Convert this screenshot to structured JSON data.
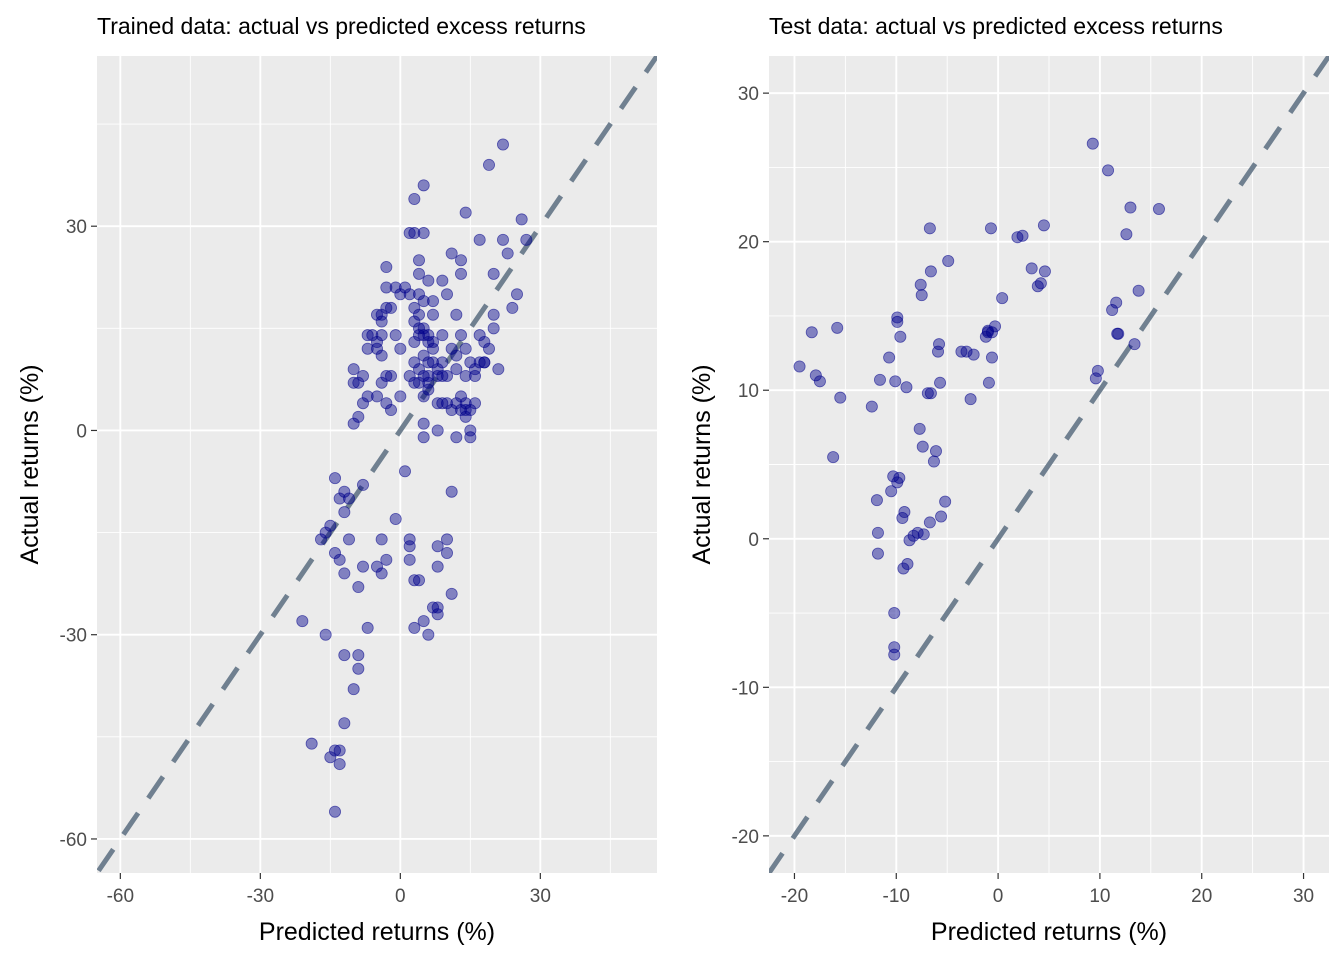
{
  "chart_data": [
    {
      "type": "scatter",
      "title": "Trained data: actual vs predicted excess returns",
      "xlabel": "Predicted returns (%)",
      "ylabel": "Actual returns (%)",
      "xlim": [
        -65,
        55
      ],
      "ylim": [
        -65,
        55
      ],
      "xticks": [
        -60,
        -30,
        0,
        30
      ],
      "yticks": [
        -60,
        -30,
        0,
        30
      ],
      "grid": true,
      "reference_line": "y = x (dashed, slate grey)",
      "point_color": "#00008B",
      "line_color": "#708090",
      "panel_color": "#EBEBEB",
      "points": [
        [
          -21,
          -28
        ],
        [
          -19,
          -46
        ],
        [
          -17,
          -16
        ],
        [
          -16,
          -15
        ],
        [
          -16,
          -30
        ],
        [
          -15,
          -14
        ],
        [
          -15,
          -48
        ],
        [
          -14,
          -47
        ],
        [
          -14,
          -7
        ],
        [
          -14,
          -18
        ],
        [
          -14,
          -56
        ],
        [
          -13,
          -47
        ],
        [
          -13,
          -49
        ],
        [
          -13,
          -10
        ],
        [
          -13,
          -19
        ],
        [
          -12,
          -12
        ],
        [
          -12,
          -21
        ],
        [
          -12,
          -43
        ],
        [
          -12,
          -33
        ],
        [
          -12,
          -9
        ],
        [
          -11,
          -16
        ],
        [
          -11,
          -10
        ],
        [
          -10,
          -38
        ],
        [
          -10,
          7
        ],
        [
          -10,
          1
        ],
        [
          -10,
          9
        ],
        [
          -9,
          -23
        ],
        [
          -9,
          -35
        ],
        [
          -9,
          -33
        ],
        [
          -9,
          2
        ],
        [
          -9,
          7
        ],
        [
          -8,
          -8
        ],
        [
          -8,
          -20
        ],
        [
          -8,
          8
        ],
        [
          -8,
          4
        ],
        [
          -7,
          -29
        ],
        [
          -7,
          5
        ],
        [
          -7,
          14
        ],
        [
          -7,
          12
        ],
        [
          -6,
          14
        ],
        [
          -5,
          17
        ],
        [
          -5,
          12
        ],
        [
          -5,
          -20
        ],
        [
          -5,
          5
        ],
        [
          -5,
          13
        ],
        [
          -4,
          -21
        ],
        [
          -4,
          -16
        ],
        [
          -4,
          16
        ],
        [
          -4,
          17
        ],
        [
          -4,
          11
        ],
        [
          -4,
          14
        ],
        [
          -4,
          7
        ],
        [
          -3,
          24
        ],
        [
          -3,
          -19
        ],
        [
          -3,
          8
        ],
        [
          -3,
          4
        ],
        [
          -3,
          21
        ],
        [
          -3,
          18
        ],
        [
          -2,
          18
        ],
        [
          -2,
          8
        ],
        [
          -2,
          3
        ],
        [
          -1,
          21
        ],
        [
          -1,
          14
        ],
        [
          -1,
          -13
        ],
        [
          0,
          12
        ],
        [
          0,
          5
        ],
        [
          0,
          20
        ],
        [
          1,
          21
        ],
        [
          1,
          -6
        ],
        [
          2,
          -16
        ],
        [
          2,
          29
        ],
        [
          2,
          20
        ],
        [
          2,
          8
        ],
        [
          2,
          -19
        ],
        [
          2,
          -17
        ],
        [
          3,
          -29
        ],
        [
          3,
          29
        ],
        [
          3,
          34
        ],
        [
          3,
          -22
        ],
        [
          3,
          16
        ],
        [
          3,
          18
        ],
        [
          3,
          13
        ],
        [
          3,
          7
        ],
        [
          3,
          10
        ],
        [
          4,
          23
        ],
        [
          4,
          25
        ],
        [
          4,
          -22
        ],
        [
          4,
          20
        ],
        [
          4,
          17
        ],
        [
          4,
          14
        ],
        [
          4,
          15
        ],
        [
          4,
          7
        ],
        [
          4,
          9
        ],
        [
          5,
          -28
        ],
        [
          5,
          29
        ],
        [
          5,
          36
        ],
        [
          5,
          11
        ],
        [
          5,
          19
        ],
        [
          5,
          5
        ],
        [
          5,
          15
        ],
        [
          5,
          14
        ],
        [
          5,
          8
        ],
        [
          5,
          1
        ],
        [
          5,
          -1
        ],
        [
          6,
          22
        ],
        [
          6,
          -30
        ],
        [
          6,
          14
        ],
        [
          6,
          13
        ],
        [
          6,
          8
        ],
        [
          6,
          7
        ],
        [
          6,
          10
        ],
        [
          6,
          6
        ],
        [
          7,
          10
        ],
        [
          7,
          -26
        ],
        [
          7,
          19
        ],
        [
          7,
          12
        ],
        [
          7,
          17
        ],
        [
          7,
          13
        ],
        [
          8,
          9
        ],
        [
          8,
          8
        ],
        [
          8,
          4
        ],
        [
          8,
          -20
        ],
        [
          8,
          -27
        ],
        [
          8,
          -17
        ],
        [
          8,
          0
        ],
        [
          8,
          -26
        ],
        [
          9,
          14
        ],
        [
          9,
          22
        ],
        [
          9,
          10
        ],
        [
          9,
          4
        ],
        [
          9,
          8
        ],
        [
          10,
          20
        ],
        [
          10,
          -18
        ],
        [
          10,
          4
        ],
        [
          10,
          8
        ],
        [
          10,
          -16
        ],
        [
          11,
          26
        ],
        [
          11,
          -24
        ],
        [
          11,
          12
        ],
        [
          11,
          -9
        ],
        [
          11,
          3
        ],
        [
          12,
          -1
        ],
        [
          12,
          9
        ],
        [
          12,
          11
        ],
        [
          12,
          17
        ],
        [
          12,
          4
        ],
        [
          13,
          23
        ],
        [
          13,
          25
        ],
        [
          13,
          14
        ],
        [
          13,
          5
        ],
        [
          13,
          3
        ],
        [
          14,
          3
        ],
        [
          14,
          32
        ],
        [
          14,
          8
        ],
        [
          14,
          4
        ],
        [
          14,
          2
        ],
        [
          14,
          12
        ],
        [
          15,
          3
        ],
        [
          15,
          0
        ],
        [
          15,
          10
        ],
        [
          15,
          -1
        ],
        [
          16,
          9
        ],
        [
          16,
          8
        ],
        [
          16,
          4
        ],
        [
          17,
          28
        ],
        [
          17,
          10
        ],
        [
          17,
          14
        ],
        [
          18,
          13
        ],
        [
          18,
          10
        ],
        [
          18,
          10
        ],
        [
          19,
          39
        ],
        [
          19,
          12
        ],
        [
          20,
          23
        ],
        [
          20,
          17
        ],
        [
          20,
          15
        ],
        [
          21,
          9
        ],
        [
          22,
          42
        ],
        [
          22,
          28
        ],
        [
          23,
          26
        ],
        [
          24,
          18
        ],
        [
          25,
          20
        ],
        [
          26,
          31
        ],
        [
          27,
          28
        ]
      ]
    },
    {
      "type": "scatter",
      "title": "Test data: actual vs predicted excess returns",
      "xlabel": "Predicted returns (%)",
      "ylabel": "Actual returns (%)",
      "xlim": [
        -22.5,
        32.5
      ],
      "ylim": [
        -22.5,
        32.5
      ],
      "xticks": [
        -20,
        -10,
        0,
        10,
        20,
        30
      ],
      "yticks": [
        -20,
        -10,
        0,
        10,
        20,
        30
      ],
      "grid": true,
      "reference_line": "y = x (dashed, slate grey)",
      "point_color": "#00008B",
      "line_color": "#708090",
      "panel_color": "#EBEBEB",
      "points": [
        [
          -19.5,
          11.6
        ],
        [
          -18.3,
          13.9
        ],
        [
          -17.9,
          11.0
        ],
        [
          -17.5,
          10.6
        ],
        [
          -16.2,
          5.5
        ],
        [
          -15.8,
          14.2
        ],
        [
          -15.5,
          9.5
        ],
        [
          -12.4,
          8.9
        ],
        [
          -11.9,
          2.6
        ],
        [
          -11.8,
          0.4
        ],
        [
          -11.8,
          -1.0
        ],
        [
          -11.6,
          10.7
        ],
        [
          -10.7,
          12.2
        ],
        [
          -10.5,
          3.2
        ],
        [
          -10.3,
          4.2
        ],
        [
          -10.2,
          -5.0
        ],
        [
          -10.2,
          -7.3
        ],
        [
          -10.2,
          -7.8
        ],
        [
          -10.1,
          10.6
        ],
        [
          -9.9,
          14.6
        ],
        [
          -9.9,
          14.9
        ],
        [
          -9.9,
          3.8
        ],
        [
          -9.7,
          4.1
        ],
        [
          -9.6,
          13.6
        ],
        [
          -9.4,
          1.4
        ],
        [
          -9.3,
          -2.0
        ],
        [
          -9.2,
          1.8
        ],
        [
          -9.0,
          10.2
        ],
        [
          -8.9,
          -1.7
        ],
        [
          -8.7,
          -0.1
        ],
        [
          -8.3,
          0.2
        ],
        [
          -7.9,
          0.4
        ],
        [
          -7.7,
          7.4
        ],
        [
          -7.6,
          17.1
        ],
        [
          -7.5,
          16.4
        ],
        [
          -7.4,
          6.2
        ],
        [
          -7.3,
          0.3
        ],
        [
          -6.9,
          9.8
        ],
        [
          -6.7,
          20.9
        ],
        [
          -6.7,
          1.1
        ],
        [
          -6.6,
          9.8
        ],
        [
          -6.6,
          18.0
        ],
        [
          -6.3,
          5.2
        ],
        [
          -6.1,
          5.9
        ],
        [
          -5.9,
          12.6
        ],
        [
          -5.8,
          13.1
        ],
        [
          -5.7,
          10.5
        ],
        [
          -5.6,
          1.5
        ],
        [
          -5.2,
          2.5
        ],
        [
          -4.9,
          18.7
        ],
        [
          -3.6,
          12.6
        ],
        [
          -3.1,
          12.6
        ],
        [
          -2.7,
          9.4
        ],
        [
          -2.4,
          12.4
        ],
        [
          -1.2,
          13.6
        ],
        [
          -1.0,
          14.0
        ],
        [
          -1.0,
          13.9
        ],
        [
          -0.9,
          10.5
        ],
        [
          -0.7,
          20.9
        ],
        [
          -0.6,
          13.9
        ],
        [
          -0.6,
          12.2
        ],
        [
          -0.3,
          14.3
        ],
        [
          0.4,
          16.2
        ],
        [
          1.9,
          20.3
        ],
        [
          2.4,
          20.4
        ],
        [
          3.3,
          18.2
        ],
        [
          3.9,
          17.0
        ],
        [
          4.2,
          17.2
        ],
        [
          4.5,
          21.1
        ],
        [
          4.6,
          18.0
        ],
        [
          9.3,
          26.6
        ],
        [
          9.6,
          10.8
        ],
        [
          9.8,
          11.3
        ],
        [
          10.8,
          24.8
        ],
        [
          11.2,
          15.4
        ],
        [
          11.6,
          15.9
        ],
        [
          11.7,
          13.8
        ],
        [
          11.8,
          13.8
        ],
        [
          12.6,
          20.5
        ],
        [
          13.0,
          22.3
        ],
        [
          13.4,
          13.1
        ],
        [
          13.8,
          16.7
        ],
        [
          15.8,
          22.2
        ]
      ]
    }
  ]
}
